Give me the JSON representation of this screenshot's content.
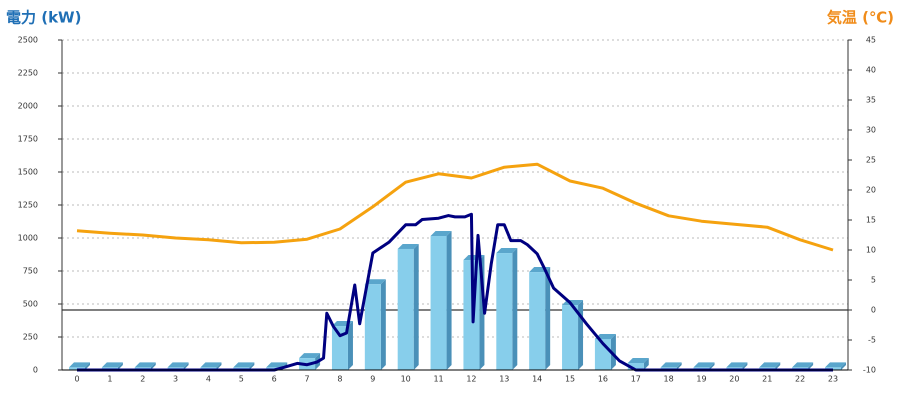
{
  "chart_data": {
    "type": "combo",
    "title_left": "電力 (kW)",
    "title_right": "気温 (℃)",
    "title_left_color": "#1f6fb5",
    "title_right_color": "#f08c1a",
    "categories": [
      "0",
      "1",
      "2",
      "3",
      "4",
      "5",
      "6",
      "7",
      "8",
      "9",
      "10",
      "11",
      "12",
      "13",
      "14",
      "15",
      "16",
      "17",
      "18",
      "19",
      "20",
      "21",
      "22",
      "23"
    ],
    "ylim": [
      0,
      2500
    ],
    "yticks": [
      0,
      250,
      500,
      750,
      1000,
      1250,
      1500,
      1750,
      2000,
      2250,
      2500
    ],
    "y2lim": [
      -10,
      45
    ],
    "y2ticks": [
      -10,
      -5,
      0,
      5,
      10,
      15,
      20,
      25,
      30,
      35,
      40,
      45
    ],
    "grid": true,
    "series": [
      {
        "type": "bar",
        "color": "#87ceeb",
        "values": [
          20,
          20,
          20,
          20,
          20,
          20,
          20,
          90,
          333,
          650,
          917,
          1015,
          833,
          886,
          742,
          492,
          235,
          53,
          20,
          20,
          20,
          20,
          20,
          20
        ]
      },
      {
        "type": "line",
        "color": "#000080",
        "x": [
          0,
          6,
          6.3,
          6.7,
          7,
          7.3,
          7.5,
          7.6,
          7.8,
          8,
          8.2,
          8.45,
          8.6,
          9,
          9.5,
          10,
          10.3,
          10.5,
          11,
          11.3,
          11.5,
          11.8,
          12,
          12.05,
          12.2,
          12.4,
          12.6,
          12.8,
          13,
          13.2,
          13.5,
          13.7,
          14,
          14.2,
          14.5,
          15,
          15.5,
          16,
          16.5,
          17,
          23
        ],
        "values": [
          0,
          0,
          20,
          50,
          40,
          60,
          90,
          430,
          330,
          260,
          280,
          644,
          350,
          886,
          970,
          1100,
          1100,
          1140,
          1150,
          1170,
          1160,
          1160,
          1180,
          365,
          1020,
          430,
          800,
          1100,
          1100,
          980,
          980,
          950,
          880,
          780,
          620,
          510,
          350,
          200,
          70,
          0,
          0
        ]
      },
      {
        "type": "line",
        "axis": "y2",
        "color": "#f5a20f",
        "values": [
          13.2,
          12.8,
          12.5,
          12,
          11.7,
          11.2,
          11.3,
          11.8,
          13.5,
          17.2,
          21.3,
          22.7,
          22,
          23.8,
          24.3,
          21.5,
          20.3,
          17.8,
          15.7,
          14.8,
          14.3,
          13.8,
          11.7,
          10
        ]
      }
    ]
  }
}
